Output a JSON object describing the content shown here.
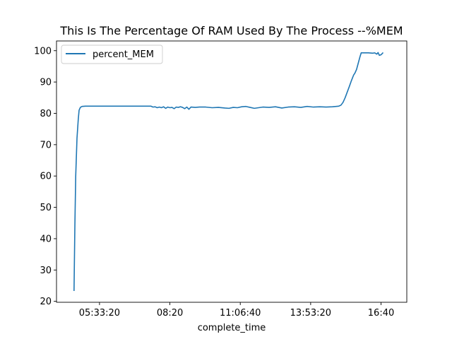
{
  "chart_data": {
    "type": "line",
    "title": "This Is The Percentage Of RAM Used By The Process --%MEM",
    "xlabel": "complete_time",
    "ylabel": "",
    "x_unit": "time of day (h:mm:ss)",
    "xlim": [
      "03:51:30",
      "17:41:00"
    ],
    "ylim": [
      19.7,
      103.1
    ],
    "y_ticks": [
      20,
      30,
      40,
      50,
      60,
      70,
      80,
      90,
      100
    ],
    "x_ticks": [
      {
        "label": "05:33:20",
        "value": "05:33:20"
      },
      {
        "label": "08:20",
        "value": "08:20:00"
      },
      {
        "label": "11:06:40",
        "value": "11:06:40"
      },
      {
        "label": "13:53:20",
        "value": "13:53:20"
      },
      {
        "label": "16:40",
        "value": "16:40:00"
      }
    ],
    "grid": false,
    "legend": {
      "position": "top-left",
      "entries": [
        "percent_MEM"
      ]
    },
    "series": [
      {
        "name": "percent_MEM",
        "color": "#1f77b4",
        "points": [
          [
            "04:33:00",
            23.3
          ],
          [
            "04:35:00",
            44.0
          ],
          [
            "04:37:00",
            60.0
          ],
          [
            "04:40:00",
            72.0
          ],
          [
            "04:43:00",
            78.0
          ],
          [
            "04:45:00",
            81.0
          ],
          [
            "04:48:00",
            81.9
          ],
          [
            "04:52:00",
            82.2
          ],
          [
            "05:00:00",
            82.3
          ],
          [
            "06:00:00",
            82.3
          ],
          [
            "07:00:00",
            82.3
          ],
          [
            "07:35:00",
            82.3
          ],
          [
            "07:40:00",
            82.0
          ],
          [
            "07:45:00",
            82.1
          ],
          [
            "07:50:00",
            81.8
          ],
          [
            "07:55:00",
            82.0
          ],
          [
            "08:00:00",
            81.8
          ],
          [
            "08:05:00",
            82.1
          ],
          [
            "08:10:00",
            81.6
          ],
          [
            "08:15:00",
            82.0
          ],
          [
            "08:20:00",
            81.8
          ],
          [
            "08:25:00",
            81.9
          ],
          [
            "08:30:00",
            81.5
          ],
          [
            "08:35:00",
            82.0
          ],
          [
            "08:40:00",
            81.9
          ],
          [
            "08:45:00",
            82.1
          ],
          [
            "08:50:00",
            81.9
          ],
          [
            "08:55:00",
            81.5
          ],
          [
            "09:00:00",
            82.0
          ],
          [
            "09:05:00",
            81.3
          ],
          [
            "09:10:00",
            82.0
          ],
          [
            "09:20:00",
            81.9
          ],
          [
            "09:30:00",
            82.0
          ],
          [
            "09:45:00",
            82.0
          ],
          [
            "10:00:00",
            81.8
          ],
          [
            "10:15:00",
            81.9
          ],
          [
            "10:30:00",
            81.7
          ],
          [
            "10:40:00",
            81.6
          ],
          [
            "10:50:00",
            81.9
          ],
          [
            "11:00:00",
            81.8
          ],
          [
            "11:10:00",
            82.1
          ],
          [
            "11:20:00",
            82.2
          ],
          [
            "11:30:00",
            81.9
          ],
          [
            "11:40:00",
            81.6
          ],
          [
            "11:50:00",
            81.8
          ],
          [
            "12:00:00",
            82.0
          ],
          [
            "12:15:00",
            81.9
          ],
          [
            "12:30:00",
            82.1
          ],
          [
            "12:45:00",
            81.7
          ],
          [
            "13:00:00",
            82.0
          ],
          [
            "13:15:00",
            82.1
          ],
          [
            "13:30:00",
            81.9
          ],
          [
            "13:45:00",
            82.2
          ],
          [
            "14:00:00",
            82.0
          ],
          [
            "14:15:00",
            82.1
          ],
          [
            "14:30:00",
            82.0
          ],
          [
            "14:45:00",
            82.1
          ],
          [
            "15:00:00",
            82.3
          ],
          [
            "15:05:00",
            82.6
          ],
          [
            "15:10:00",
            83.5
          ],
          [
            "15:15:00",
            85.0
          ],
          [
            "15:20:00",
            86.8
          ],
          [
            "15:25:00",
            88.6
          ],
          [
            "15:30:00",
            90.5
          ],
          [
            "15:35:00",
            92.2
          ],
          [
            "15:38:00",
            92.8
          ],
          [
            "15:42:00",
            94.0
          ],
          [
            "15:46:00",
            96.0
          ],
          [
            "15:50:00",
            98.0
          ],
          [
            "15:53:00",
            99.3
          ],
          [
            "16:00:00",
            99.3
          ],
          [
            "16:10:00",
            99.3
          ],
          [
            "16:20:00",
            99.2
          ],
          [
            "16:25:00",
            99.3
          ],
          [
            "16:30:00",
            98.9
          ],
          [
            "16:33:00",
            99.4
          ],
          [
            "16:36:00",
            98.5
          ],
          [
            "16:40:00",
            98.7
          ],
          [
            "16:45:00",
            99.4
          ]
        ]
      }
    ]
  }
}
